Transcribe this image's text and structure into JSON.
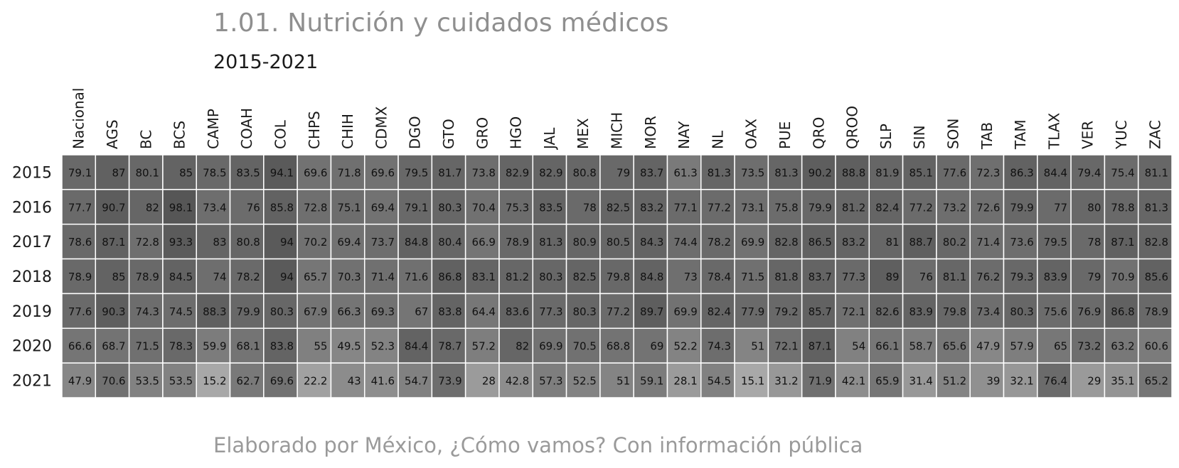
{
  "title": "1.01. Nutrición y cuidados médicos",
  "subtitle": "2015-2021",
  "footer": "Elaborado por México, ¿Cómo vamos? Con información pública",
  "chart_data": {
    "type": "heatmap",
    "title": "1.01. Nutrición y cuidados médicos",
    "subtitle": "2015-2021",
    "colors": {
      "cell_low": "#a8a8a8",
      "cell_high": "#555555",
      "grid": "#ffffff",
      "text": "#111111"
    },
    "color_range": [
      15,
      99
    ],
    "columns": [
      "Nacional",
      "AGS",
      "BC",
      "BCS",
      "CAMP",
      "COAH",
      "COL",
      "CHPS",
      "CHIH",
      "CDMX",
      "DGO",
      "GTO",
      "GRO",
      "HGO",
      "JAL",
      "MEX",
      "MICH",
      "MOR",
      "NAY",
      "NL",
      "OAX",
      "PUE",
      "QRO",
      "QROO",
      "SLP",
      "SIN",
      "SON",
      "TAB",
      "TAM",
      "TLAX",
      "VER",
      "YUC",
      "ZAC"
    ],
    "rows": [
      "2015",
      "2016",
      "2017",
      "2018",
      "2019",
      "2020",
      "2021"
    ],
    "values": [
      [
        79.1,
        87,
        80.1,
        85,
        78.5,
        83.5,
        94.1,
        69.6,
        71.8,
        69.6,
        79.5,
        81.7,
        73.8,
        82.9,
        82.9,
        80.8,
        79,
        83.7,
        61.3,
        81.3,
        73.5,
        81.3,
        90.2,
        88.8,
        81.9,
        85.1,
        77.6,
        72.3,
        86.3,
        84.4,
        79.4,
        75.4,
        81.1
      ],
      [
        77.7,
        90.7,
        82,
        98.1,
        73.4,
        76,
        85.8,
        72.8,
        75.1,
        69.4,
        79.1,
        80.3,
        70.4,
        75.3,
        83.5,
        78,
        82.5,
        83.2,
        77.1,
        77.2,
        73.1,
        75.8,
        79.9,
        81.2,
        82.4,
        77.2,
        73.2,
        72.6,
        79.9,
        77,
        80,
        78.8,
        81.3
      ],
      [
        78.6,
        87.1,
        72.8,
        93.3,
        83,
        80.8,
        94,
        70.2,
        69.4,
        73.7,
        84.8,
        80.4,
        66.9,
        78.9,
        81.3,
        80.9,
        80.5,
        84.3,
        74.4,
        78.2,
        69.9,
        82.8,
        86.5,
        83.2,
        81,
        88.7,
        80.2,
        71.4,
        73.6,
        79.5,
        78,
        87.1,
        82.8
      ],
      [
        78.9,
        85,
        78.9,
        84.5,
        74,
        78.2,
        94,
        65.7,
        70.3,
        71.4,
        71.6,
        86.8,
        83.1,
        81.2,
        80.3,
        82.5,
        79.8,
        84.8,
        73,
        78.4,
        71.5,
        81.8,
        83.7,
        77.3,
        89,
        76,
        81.1,
        76.2,
        79.3,
        83.9,
        79,
        70.9,
        85.6
      ],
      [
        77.6,
        90.3,
        74.3,
        74.5,
        88.3,
        79.9,
        80.3,
        67.9,
        66.3,
        69.3,
        67,
        83.8,
        64.4,
        83.6,
        77.3,
        80.3,
        77.2,
        89.7,
        69.9,
        82.4,
        77.9,
        79.2,
        85.7,
        72.1,
        82.6,
        83.9,
        79.8,
        73.4,
        80.3,
        75.6,
        76.9,
        86.8,
        78.9
      ],
      [
        66.6,
        68.7,
        71.5,
        78.3,
        59.9,
        68.1,
        83.8,
        55,
        49.5,
        52.3,
        84.4,
        78.7,
        57.2,
        82,
        69.9,
        70.5,
        68.8,
        69,
        52.2,
        74.3,
        51,
        72.1,
        87.1,
        54,
        66.1,
        58.7,
        65.6,
        47.9,
        57.9,
        65,
        73.2,
        63.2,
        60.6
      ],
      [
        47.9,
        70.6,
        53.5,
        53.5,
        15.2,
        62.7,
        69.6,
        22.2,
        43,
        41.6,
        54.7,
        73.9,
        28,
        42.8,
        57.3,
        52.5,
        51,
        59.1,
        28.1,
        54.5,
        15.1,
        31.2,
        71.9,
        42.1,
        65.9,
        31.4,
        51.2,
        39,
        32.1,
        76.4,
        29,
        35.1,
        65.2
      ]
    ]
  }
}
